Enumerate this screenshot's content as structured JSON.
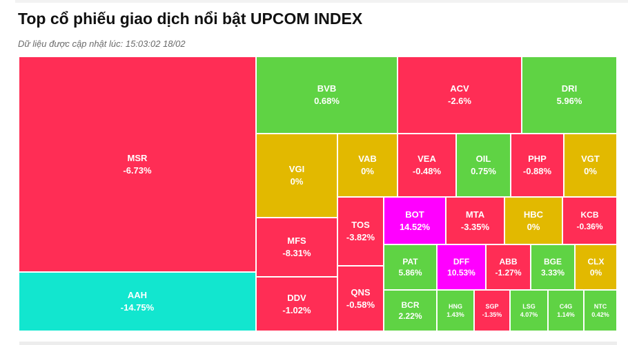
{
  "header": {
    "title": "Top cổ phiếu giao dịch nổi bật UPCOM INDEX",
    "updated": "Dữ liệu được cập nhật lúc: 15:03:02 18/02"
  },
  "colors": {
    "down": "#ff2d55",
    "up": "#5fd344",
    "unchanged": "#e2b900",
    "ceiling": "#ff00ff",
    "floor": "#12e6cf"
  },
  "chart_data": {
    "type": "treemap",
    "title": "Top cổ phiếu giao dịch nổi bật UPCOM INDEX",
    "items": [
      {
        "ticker": "MSR",
        "change": "-6.73%",
        "status": "down"
      },
      {
        "ticker": "AAH",
        "change": "-14.75%",
        "status": "floor"
      },
      {
        "ticker": "BVB",
        "change": "0.68%",
        "status": "up"
      },
      {
        "ticker": "ACV",
        "change": "-2.6%",
        "status": "down"
      },
      {
        "ticker": "DRI",
        "change": "5.96%",
        "status": "up"
      },
      {
        "ticker": "VGI",
        "change": "0%",
        "status": "unchanged"
      },
      {
        "ticker": "VAB",
        "change": "0%",
        "status": "unchanged"
      },
      {
        "ticker": "VEA",
        "change": "-0.48%",
        "status": "down"
      },
      {
        "ticker": "OIL",
        "change": "0.75%",
        "status": "up"
      },
      {
        "ticker": "PHP",
        "change": "-0.88%",
        "status": "down"
      },
      {
        "ticker": "VGT",
        "change": "0%",
        "status": "unchanged"
      },
      {
        "ticker": "MFS",
        "change": "-8.31%",
        "status": "down"
      },
      {
        "ticker": "DDV",
        "change": "-1.02%",
        "status": "down"
      },
      {
        "ticker": "TOS",
        "change": "-3.82%",
        "status": "down"
      },
      {
        "ticker": "QNS",
        "change": "-0.58%",
        "status": "down"
      },
      {
        "ticker": "BOT",
        "change": "14.52%",
        "status": "ceiling"
      },
      {
        "ticker": "MTA",
        "change": "-3.35%",
        "status": "down"
      },
      {
        "ticker": "HBC",
        "change": "0%",
        "status": "unchanged"
      },
      {
        "ticker": "KCB",
        "change": "-0.36%",
        "status": "down"
      },
      {
        "ticker": "PAT",
        "change": "5.86%",
        "status": "up"
      },
      {
        "ticker": "DFF",
        "change": "10.53%",
        "status": "ceiling"
      },
      {
        "ticker": "ABB",
        "change": "-1.27%",
        "status": "down"
      },
      {
        "ticker": "BGE",
        "change": "3.33%",
        "status": "up"
      },
      {
        "ticker": "CLX",
        "change": "0%",
        "status": "unchanged"
      },
      {
        "ticker": "BCR",
        "change": "2.22%",
        "status": "up"
      },
      {
        "ticker": "HNG",
        "change": "1.43%",
        "status": "up"
      },
      {
        "ticker": "SGP",
        "change": "-1.35%",
        "status": "down"
      },
      {
        "ticker": "LSG",
        "change": "4.07%",
        "status": "up"
      },
      {
        "ticker": "C4G",
        "change": "1.14%",
        "status": "up"
      },
      {
        "ticker": "NTC",
        "change": "0.42%",
        "status": "up"
      }
    ]
  }
}
